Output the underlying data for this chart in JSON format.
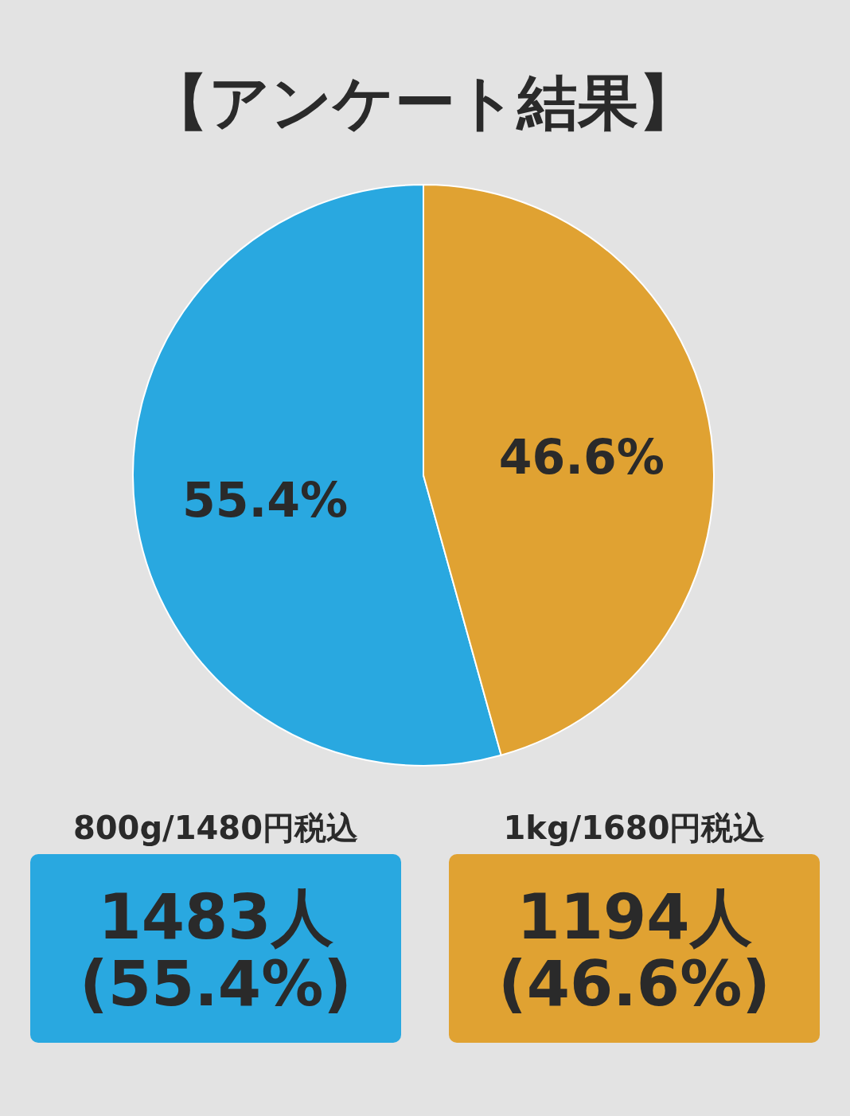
{
  "chart_data": {
    "type": "pie",
    "title": "【アンケート結果】",
    "categories": [
      "800g/1480円税込",
      "1kg/1680円税込"
    ],
    "values": [
      55.4,
      46.6
    ],
    "colors": [
      "#29a8e0",
      "#e0a232"
    ],
    "value_labels": [
      "55.4%",
      "46.6%"
    ],
    "annotations": [
      "1483人",
      "(55.4%)",
      "1194人",
      "(46.6%)"
    ]
  }
}
